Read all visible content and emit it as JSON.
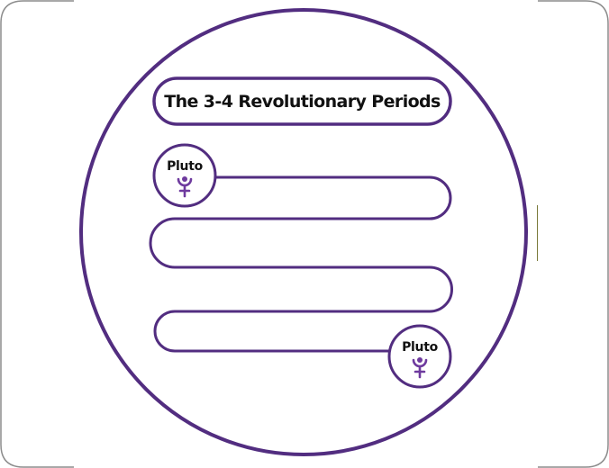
{
  "diagram": {
    "title": "The 3-4 Revolutionary Periods",
    "start_node": {
      "label": "Pluto",
      "symbol": "pluto-glyph"
    },
    "end_node": {
      "label": "Pluto",
      "symbol": "pluto-glyph"
    },
    "path_shape": "serpentine",
    "colors": {
      "accent": "#522D80",
      "glyph": "#6E3A9E",
      "frame": "#8C8C8C",
      "text": "#111111",
      "background": "#FFFFFF"
    }
  }
}
